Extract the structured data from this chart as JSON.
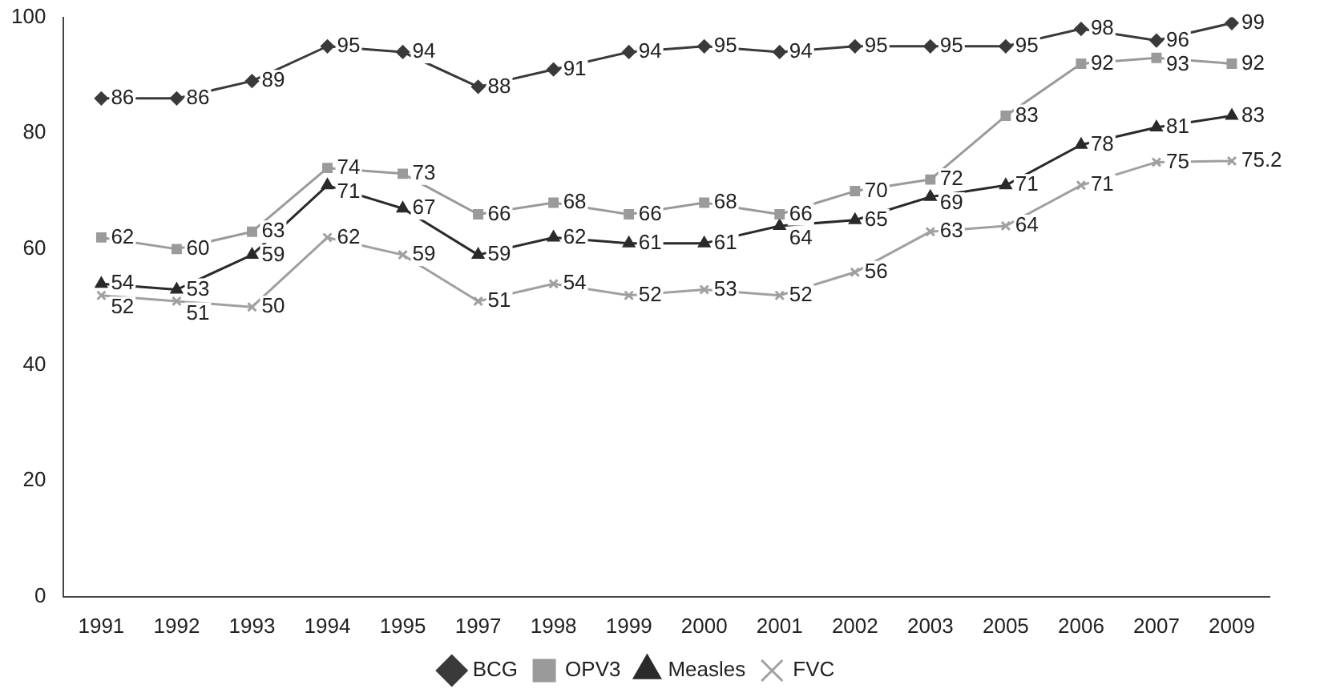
{
  "chart_data": {
    "type": "line",
    "categories": [
      "1991",
      "1992",
      "1993",
      "1994",
      "1995",
      "1997",
      "1998",
      "1999",
      "2000",
      "2001",
      "2002",
      "2003",
      "2005",
      "2006",
      "2007",
      "2009"
    ],
    "series": [
      {
        "name": "BCG",
        "color": "#3a3a3a",
        "marker": "diamond",
        "values": [
          86,
          86,
          89,
          95,
          94,
          88,
          91,
          94,
          95,
          94,
          95,
          95,
          95,
          98,
          96,
          99
        ]
      },
      {
        "name": "OPV3",
        "color": "#9a9a9a",
        "marker": "square",
        "values": [
          62,
          60,
          63,
          74,
          73,
          66,
          68,
          66,
          68,
          66,
          70,
          72,
          83,
          92,
          93,
          92
        ]
      },
      {
        "name": "Measles",
        "color": "#2a2a2a",
        "marker": "triangle",
        "values": [
          54,
          53,
          59,
          71,
          67,
          59,
          62,
          61,
          61,
          64,
          65,
          69,
          71,
          78,
          81,
          83
        ]
      },
      {
        "name": "FVC",
        "color": "#a0a0a0",
        "marker": "cross",
        "values": [
          52,
          51,
          50,
          62,
          59,
          51,
          54,
          52,
          53,
          52,
          56,
          63,
          64,
          71,
          75,
          75.2
        ]
      }
    ],
    "ylim": [
      0,
      100
    ],
    "yticks": [
      0,
      20,
      40,
      60,
      80,
      100
    ],
    "grid": false,
    "legend": "bottom",
    "data_labels": true,
    "line_style": "solid"
  }
}
